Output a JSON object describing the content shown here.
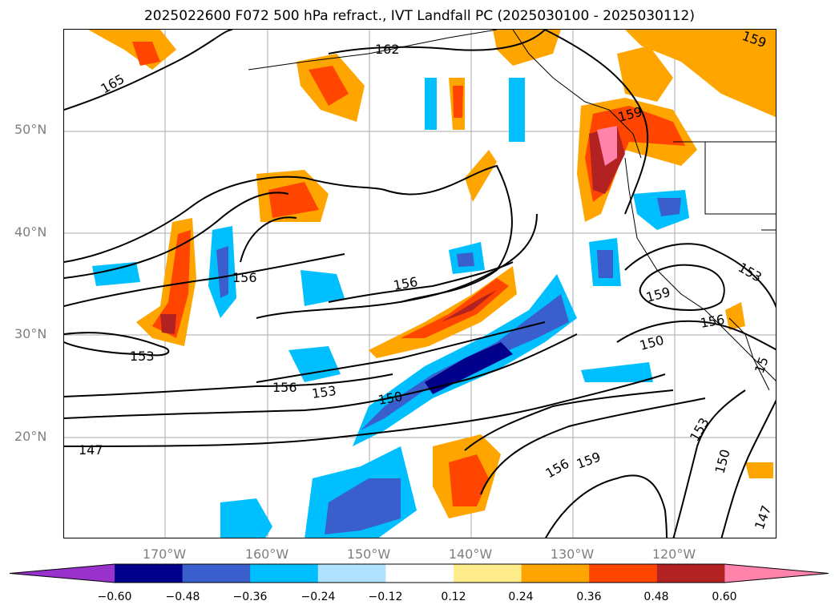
{
  "title": "2025022600 F072 500 hPa refract., IVT Landfall PC (2025030100 - 2025030112)",
  "lat_labels": [
    "50°N",
    "40°N",
    "30°N",
    "20°N"
  ],
  "lon_labels": [
    "170°W",
    "160°W",
    "150°W",
    "140°W",
    "130°W",
    "120°W"
  ],
  "contour_labels": [
    "165",
    "162",
    "159",
    "159",
    "156",
    "156",
    "159",
    "153",
    "156",
    "153",
    "150",
    "156",
    "153",
    "150",
    "147",
    "156",
    "159",
    "153",
    "150",
    "147",
    "15"
  ],
  "colorbar": {
    "colors": [
      "#9932cc",
      "#00008b",
      "#3a5fcd",
      "#00bfff",
      "#b0e2ff",
      "#ffffff",
      "#ffec8b",
      "#ffa500",
      "#ff4500",
      "#b22222",
      "#ff83aa"
    ],
    "tick_labels": [
      "−0.60",
      "−0.48",
      "−0.36",
      "−0.24",
      "−0.12",
      "0.12",
      "0.24",
      "0.36",
      "0.48",
      "0.60"
    ]
  }
}
